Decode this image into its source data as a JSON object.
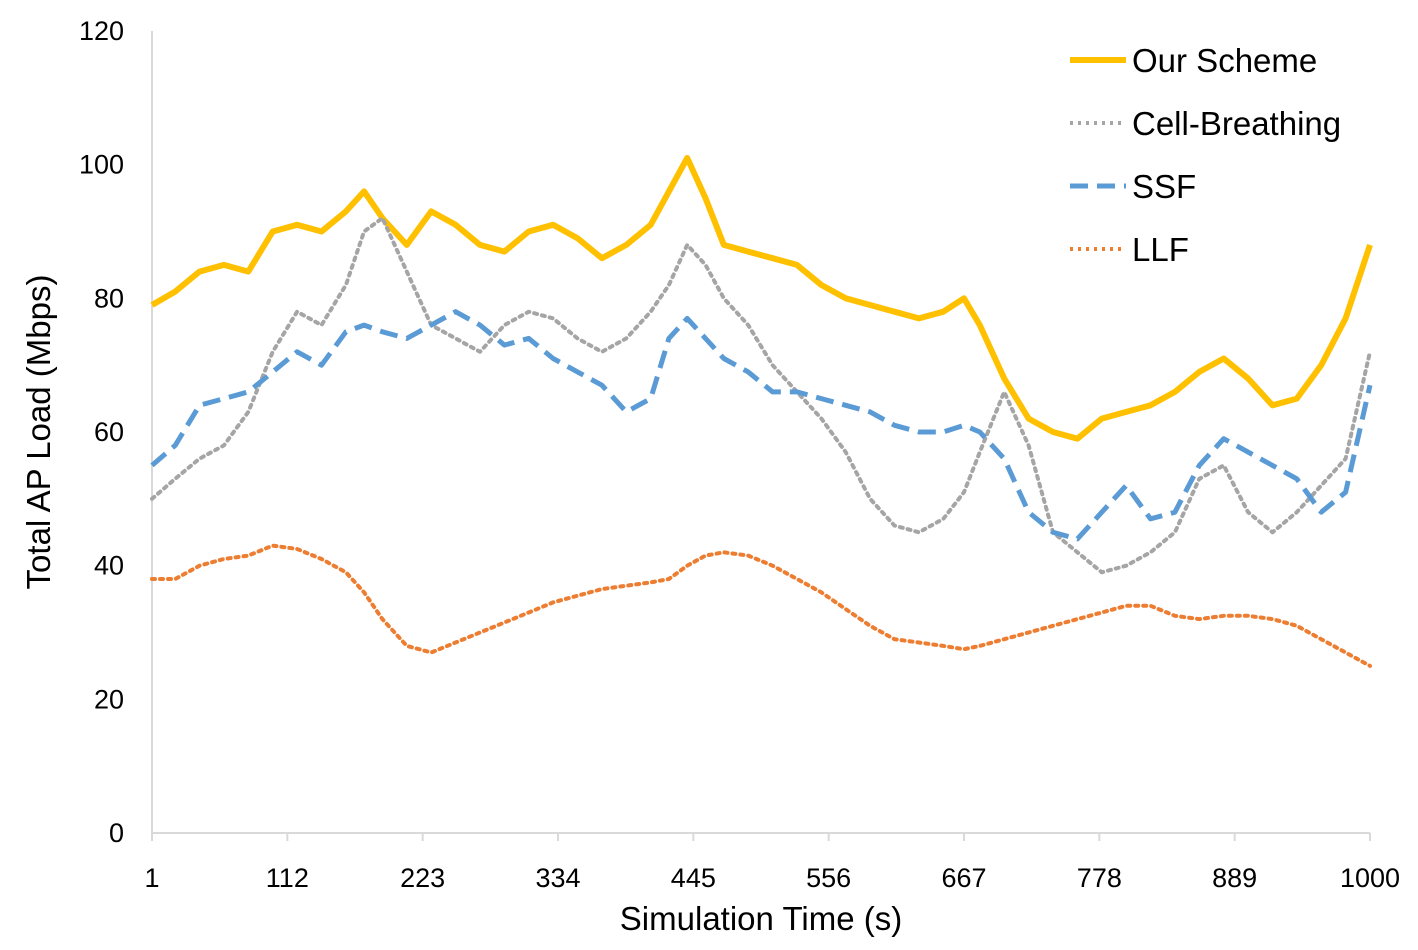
{
  "chart_data": {
    "type": "line",
    "title": "",
    "xlabel": "Simulation Time (s)",
    "ylabel": "Total AP Load (Mbps)",
    "xlim": [
      1,
      1000
    ],
    "ylim": [
      0,
      120
    ],
    "x_ticks": [
      1,
      112,
      223,
      334,
      445,
      556,
      667,
      778,
      889,
      1000
    ],
    "y_ticks": [
      0,
      20,
      40,
      60,
      80,
      100,
      120
    ],
    "grid": false,
    "legend_position": "top-right",
    "x": [
      1,
      20,
      40,
      60,
      80,
      100,
      120,
      140,
      160,
      175,
      190,
      210,
      230,
      250,
      270,
      290,
      310,
      330,
      350,
      370,
      390,
      410,
      425,
      440,
      455,
      470,
      490,
      510,
      530,
      550,
      570,
      590,
      610,
      630,
      650,
      667,
      680,
      700,
      720,
      740,
      760,
      780,
      800,
      820,
      840,
      860,
      880,
      900,
      920,
      940,
      960,
      980,
      1000
    ],
    "series": [
      {
        "name": "Our Scheme",
        "color": "#FFC000",
        "style": "solid",
        "values": [
          79,
          81,
          84,
          85,
          84,
          90,
          91,
          90,
          93,
          96,
          92,
          88,
          93,
          91,
          88,
          87,
          90,
          91,
          89,
          86,
          88,
          91,
          96,
          101,
          95,
          88,
          87,
          86,
          85,
          82,
          80,
          79,
          78,
          77,
          78,
          80,
          76,
          68,
          62,
          60,
          59,
          62,
          63,
          64,
          66,
          69,
          71,
          68,
          64,
          65,
          70,
          77,
          88
        ]
      },
      {
        "name": "Cell-Breathing",
        "color": "#A5A5A5",
        "style": "dotted",
        "values": [
          50,
          53,
          56,
          58,
          63,
          72,
          78,
          76,
          82,
          90,
          92,
          84,
          76,
          74,
          72,
          76,
          78,
          77,
          74,
          72,
          74,
          78,
          82,
          88,
          85,
          80,
          76,
          70,
          66,
          62,
          57,
          50,
          46,
          45,
          47,
          51,
          57,
          66,
          58,
          45,
          42,
          39,
          40,
          42,
          45,
          53,
          55,
          48,
          45,
          48,
          52,
          56,
          72
        ]
      },
      {
        "name": "SSF",
        "color": "#5B9BD5",
        "style": "dashed",
        "values": [
          55,
          58,
          64,
          65,
          66,
          69,
          72,
          70,
          75,
          76,
          75,
          74,
          76,
          78,
          76,
          73,
          74,
          71,
          69,
          67,
          63,
          65,
          74,
          77,
          74,
          71,
          69,
          66,
          66,
          65,
          64,
          63,
          61,
          60,
          60,
          61,
          60,
          56,
          48,
          45,
          44,
          48,
          52,
          47,
          48,
          55,
          59,
          57,
          55,
          53,
          48,
          51,
          67
        ]
      },
      {
        "name": "LLF",
        "color": "#ED7D31",
        "style": "dotted",
        "values": [
          38,
          38,
          40,
          41,
          41.5,
          43,
          42.5,
          41,
          39,
          36,
          32,
          28,
          27,
          28.5,
          30,
          31.5,
          33,
          34.5,
          35.5,
          36.5,
          37,
          37.5,
          38,
          40,
          41.5,
          42,
          41.5,
          40,
          38,
          36,
          33.5,
          31,
          29,
          28.5,
          28,
          27.5,
          28,
          29,
          30,
          31,
          32,
          33,
          34,
          34,
          32.5,
          32,
          32.5,
          32.5,
          32,
          31,
          29,
          27,
          25
        ]
      }
    ]
  }
}
